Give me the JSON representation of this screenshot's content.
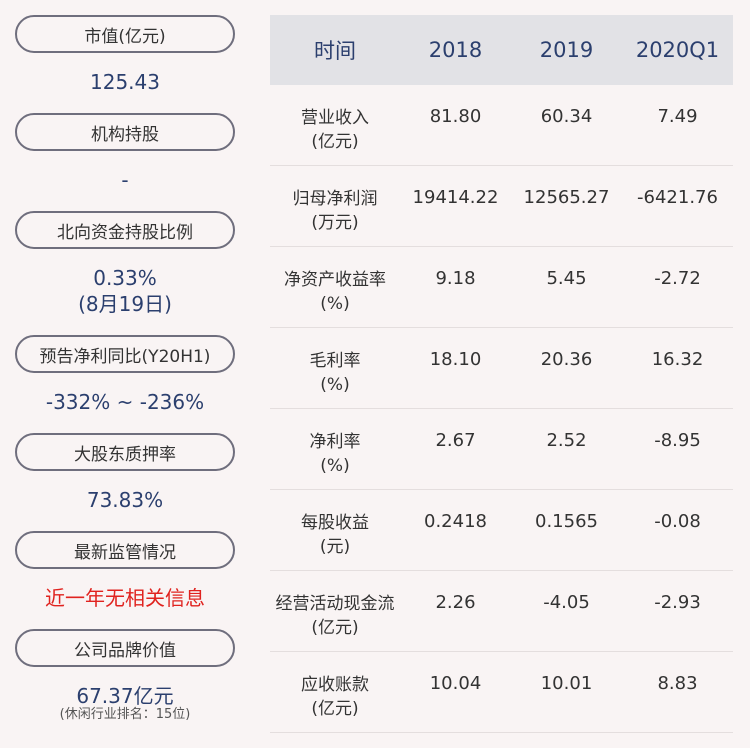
{
  "left": {
    "items": [
      {
        "label": "市值(亿元)",
        "value": "125.43"
      },
      {
        "label": "机构持股",
        "value": "-"
      },
      {
        "label": "北向资金持股比例",
        "value": "0.33%",
        "value2": "(8月19日)"
      },
      {
        "label": "预告净利同比(Y20H1)",
        "value": "-332% ~ -236%"
      },
      {
        "label": "大股东质押率",
        "value": "73.83%"
      },
      {
        "label": "最新监管情况",
        "value": "近一年无相关信息"
      },
      {
        "label": "公司品牌价值",
        "value": "67.37亿元",
        "note": "(休闲行业排名：15位)"
      }
    ]
  },
  "table": {
    "headers": [
      "时间",
      "2018",
      "2019",
      "2020Q1"
    ],
    "rows": [
      {
        "name": "营业收入",
        "unit": "(亿元)",
        "v": [
          "81.80",
          "60.34",
          "7.49"
        ]
      },
      {
        "name": "归母净利润",
        "unit": "(万元)",
        "v": [
          "19414.22",
          "12565.27",
          "-6421.76"
        ]
      },
      {
        "name": "净资产收益率",
        "unit": "(%)",
        "v": [
          "9.18",
          "5.45",
          "-2.72"
        ]
      },
      {
        "name": "毛利率",
        "unit": "(%)",
        "v": [
          "18.10",
          "20.36",
          "16.32"
        ]
      },
      {
        "name": "净利率",
        "unit": "(%)",
        "v": [
          "2.67",
          "2.52",
          "-8.95"
        ]
      },
      {
        "name": "每股收益",
        "unit": "(元)",
        "v": [
          "0.2418",
          "0.1565",
          "-0.08"
        ]
      },
      {
        "name": "经营活动现金流",
        "unit": "(亿元)",
        "v": [
          "2.26",
          "-4.05",
          "-2.93"
        ]
      },
      {
        "name": "应收账款",
        "unit": "(亿元)",
        "v": [
          "10.04",
          "10.01",
          "8.83"
        ]
      }
    ]
  }
}
